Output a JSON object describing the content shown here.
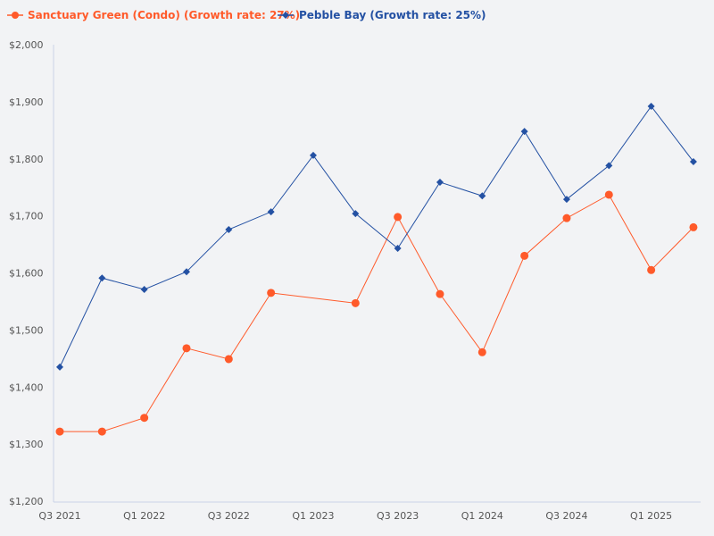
{
  "chart_data": {
    "type": "line",
    "categories": [
      "Q3 2021",
      "Q4 2021",
      "Q1 2022",
      "Q2 2022",
      "Q3 2022",
      "Q4 2022",
      "Q1 2023",
      "Q2 2023",
      "Q3 2023",
      "Q4 2023",
      "Q1 2024",
      "Q2 2024",
      "Q3 2024",
      "Q4 2024",
      "Q1 2025",
      "Q2 2025"
    ],
    "x_tick_labels": [
      "Q3 2021",
      "Q1 2022",
      "Q3 2022",
      "Q1 2023",
      "Q3 2023",
      "Q1 2024",
      "Q3 2024",
      "Q1 2025"
    ],
    "y_tick_labels": [
      "$1,200",
      "$1,300",
      "$1,400",
      "$1,500",
      "$1,600",
      "$1,700",
      "$1,800",
      "$1,900",
      "$2,000"
    ],
    "ylim": [
      1200,
      2000
    ],
    "grid": false,
    "legend_position": "top-left",
    "series": [
      {
        "name": "Sanctuary Green (Condo) (Growth rate: 27%)",
        "color": "#ff5a2a",
        "marker": "circle",
        "values": [
          1322,
          1322,
          1346,
          1468,
          1449,
          1565,
          null,
          1547,
          1698,
          1563,
          1461,
          1630,
          1696,
          1737,
          1605,
          1680
        ]
      },
      {
        "name": "Pebble Bay (Growth rate: 25%)",
        "color": "#2451a3",
        "marker": "diamond",
        "values": [
          1435,
          1591,
          1571,
          1602,
          1676,
          1707,
          1806,
          1704,
          1643,
          1759,
          1735,
          1848,
          1729,
          1788,
          1892,
          1795
        ]
      }
    ]
  }
}
